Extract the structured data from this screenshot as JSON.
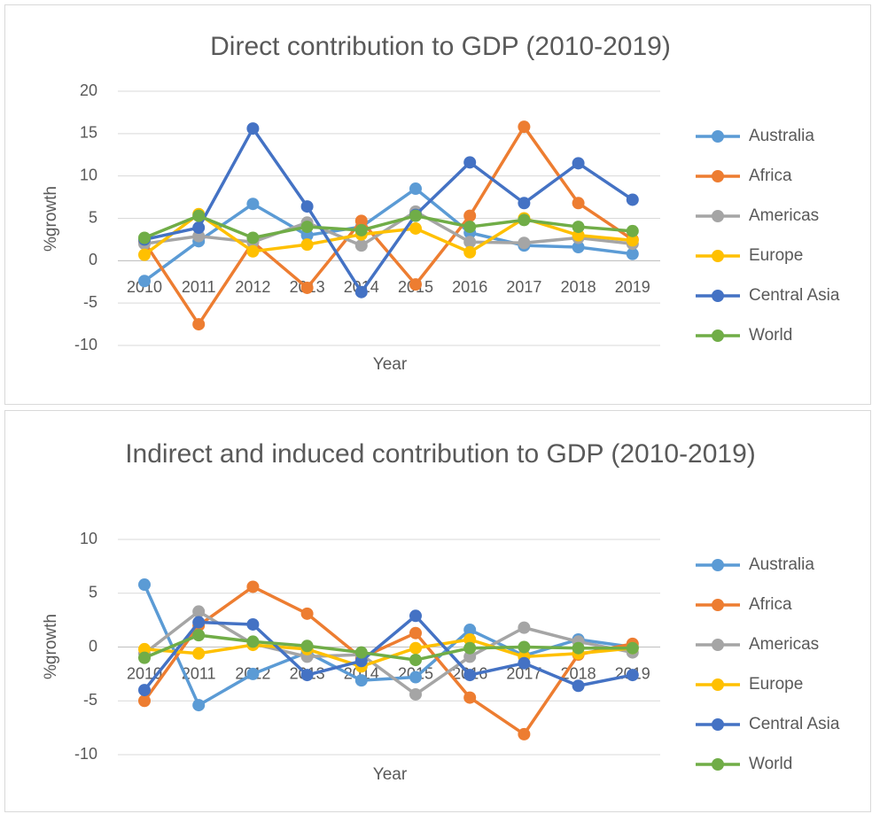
{
  "chart_data": [
    {
      "type": "line",
      "title": "Direct contribution to GDP (2010-2019)",
      "x_label": "Year",
      "y_label": "%growth",
      "categories": [
        "2010",
        "2011",
        "2012",
        "2013",
        "2014",
        "2015",
        "2016",
        "2017",
        "2018",
        "2019"
      ],
      "ylim": [
        -10,
        20
      ],
      "yticks": [
        -10,
        -5,
        0,
        5,
        10,
        15,
        20
      ],
      "grid": true,
      "legend": "right",
      "series": [
        {
          "name": "Australia",
          "color": "#5b9bd5",
          "values": [
            -2.4,
            2.3,
            6.7,
            3.0,
            4.0,
            8.5,
            3.3,
            1.8,
            1.6,
            0.8
          ]
        },
        {
          "name": "Africa",
          "color": "#ed7d31",
          "values": [
            2.2,
            -7.5,
            2.2,
            -3.2,
            4.7,
            -2.8,
            5.3,
            15.8,
            6.8,
            2.5
          ]
        },
        {
          "name": "Americas",
          "color": "#a5a5a5",
          "values": [
            2.0,
            2.9,
            2.2,
            4.5,
            1.8,
            5.8,
            2.2,
            2.1,
            2.7,
            2.0
          ]
        },
        {
          "name": "Europe",
          "color": "#ffc000",
          "values": [
            0.7,
            5.5,
            1.1,
            1.9,
            3.1,
            3.8,
            1.0,
            5.0,
            3.0,
            2.4
          ]
        },
        {
          "name": "Central Asia",
          "color": "#4472c4",
          "values": [
            2.5,
            3.9,
            15.6,
            6.4,
            -3.7,
            5.4,
            11.6,
            6.8,
            11.5,
            7.2
          ]
        },
        {
          "name": "World",
          "color": "#70ad47",
          "values": [
            2.7,
            5.3,
            2.7,
            4.0,
            3.6,
            5.3,
            4.0,
            4.8,
            4.0,
            3.5
          ]
        }
      ]
    },
    {
      "type": "line",
      "title": "Indirect and induced contribution to GDP (2010-2019)",
      "x_label": "Year",
      "y_label": "%growth",
      "categories": [
        "2010",
        "2011",
        "2012",
        "2013",
        "2014",
        "2015",
        "2016",
        "2017",
        "2018",
        "2019"
      ],
      "ylim": [
        -10,
        10
      ],
      "yticks": [
        -10,
        -5,
        0,
        5,
        10
      ],
      "grid": true,
      "legend": "right",
      "series": [
        {
          "name": "Australia",
          "color": "#5b9bd5",
          "values": [
            5.8,
            -5.4,
            -2.5,
            -0.5,
            -3.1,
            -2.8,
            1.6,
            -0.8,
            0.7,
            0.0
          ]
        },
        {
          "name": "Africa",
          "color": "#ed7d31",
          "values": [
            -5.0,
            2.0,
            5.6,
            3.1,
            -1.0,
            1.3,
            -4.7,
            -8.1,
            -0.7,
            0.3
          ]
        },
        {
          "name": "Americas",
          "color": "#a5a5a5",
          "values": [
            -0.6,
            3.3,
            0.3,
            -0.9,
            -0.7,
            -4.4,
            -0.9,
            1.8,
            0.5,
            -0.5
          ]
        },
        {
          "name": "Europe",
          "color": "#ffc000",
          "values": [
            -0.2,
            -0.6,
            0.2,
            -0.2,
            -1.8,
            -0.1,
            0.7,
            -0.9,
            -0.6,
            -0.1
          ]
        },
        {
          "name": "Central Asia",
          "color": "#4472c4",
          "values": [
            -4.0,
            2.3,
            2.1,
            -2.6,
            -1.3,
            2.9,
            -2.6,
            -1.5,
            -3.6,
            -2.6
          ]
        },
        {
          "name": "World",
          "color": "#70ad47",
          "values": [
            -1.0,
            1.1,
            0.5,
            0.1,
            -0.5,
            -1.2,
            -0.1,
            0.0,
            -0.1,
            -0.1
          ]
        }
      ]
    }
  ]
}
